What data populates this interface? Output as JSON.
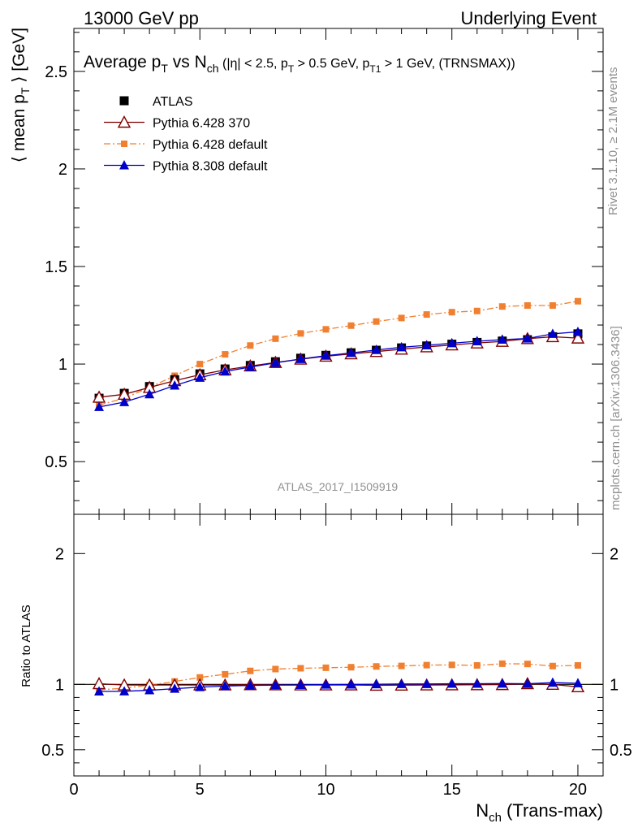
{
  "header": {
    "left": "13000 GeV pp",
    "right": "Underlying Event"
  },
  "side_labels": {
    "rivet": "Rivet 3.1.10, ≥ 2.1M events",
    "mcplots": "mcplots.cern.ch [arXiv:1306.3436]"
  },
  "watermark": "ATLAS_2017_I1509919",
  "chart_data": [
    {
      "type": "scatter",
      "title": "Average p_T vs N_ch (|η| < 2.5, p_T > 0.5 GeV, p_T1 > 1 GeV, (TRNSMAX))",
      "title_parts": {
        "a": "Average p",
        "a_sub": "T",
        "b": " vs N",
        "b_sub": "ch",
        "c": " (|η| < 2.5, p",
        "c_sub": "T",
        "d": " > 0.5 GeV, p",
        "d_sub": "T1",
        "e": " > 1 GeV, (TRNSMAX))"
      },
      "ylabel": "⟨ mean p_T ⟩ [GeV]",
      "ylabel_parts": {
        "a": "⟨ mean p",
        "sub": "T",
        "b": " ⟩ [GeV]"
      },
      "xlim": [
        0,
        21
      ],
      "ylim": [
        0.23,
        2.72
      ],
      "yticks": [
        0.5,
        1,
        1.5,
        2,
        2.5
      ],
      "ytick_labels": [
        "0.5",
        "1",
        "1.5",
        "2",
        "2.5"
      ],
      "legend_position": "top-left",
      "x": [
        1,
        2,
        3,
        4,
        5,
        6,
        7,
        8,
        9,
        10,
        11,
        12,
        13,
        14,
        15,
        16,
        17,
        18,
        19,
        20
      ],
      "series": [
        {
          "name": "ATLAS",
          "color": "#000000",
          "marker": "square",
          "values": [
            0.825,
            0.85,
            0.885,
            0.92,
            0.95,
            0.975,
            0.993,
            1.012,
            1.03,
            1.045,
            1.058,
            1.071,
            1.083,
            1.093,
            1.102,
            1.111,
            1.118,
            1.125,
            1.14,
            1.155
          ]
        },
        {
          "name": "Pythia 6.428 370",
          "color": "#800000",
          "marker": "open-triangle",
          "values": [
            0.83,
            0.845,
            0.88,
            0.915,
            0.945,
            0.97,
            0.99,
            1.008,
            1.025,
            1.04,
            1.052,
            1.064,
            1.076,
            1.088,
            1.098,
            1.108,
            1.116,
            1.13,
            1.14,
            1.133
          ]
        },
        {
          "name": "Pythia 6.428 default",
          "color": "#f08030",
          "marker": "small-square",
          "dash": "dashdot",
          "values": [
            0.79,
            0.825,
            0.88,
            0.94,
            1.0,
            1.05,
            1.095,
            1.13,
            1.157,
            1.178,
            1.197,
            1.218,
            1.236,
            1.254,
            1.266,
            1.272,
            1.295,
            1.3,
            1.3,
            1.322
          ]
        },
        {
          "name": "Pythia 8.308 default",
          "color": "#0000cc",
          "marker": "triangle",
          "values": [
            0.78,
            0.805,
            0.845,
            0.89,
            0.93,
            0.962,
            0.985,
            1.006,
            1.026,
            1.043,
            1.057,
            1.072,
            1.086,
            1.096,
            1.107,
            1.117,
            1.125,
            1.131,
            1.155,
            1.165
          ]
        }
      ]
    },
    {
      "type": "scatter",
      "ylabel": "Ratio to ATLAS",
      "xlabel": "N_ch (Trans-max)",
      "xlabel_parts": {
        "a": "N",
        "sub": "ch",
        "b": " (Trans-max)"
      },
      "xlim": [
        0,
        21
      ],
      "ylim": [
        0.3,
        2.3
      ],
      "xticks": [
        0,
        5,
        10,
        15,
        20
      ],
      "xtick_labels": [
        "0",
        "5",
        "10",
        "15",
        "20"
      ],
      "yticks": [
        0.5,
        1,
        2
      ],
      "ytick_labels": [
        "0.5",
        "1",
        "2"
      ],
      "x": [
        1,
        2,
        3,
        4,
        5,
        6,
        7,
        8,
        9,
        10,
        11,
        12,
        13,
        14,
        15,
        16,
        17,
        18,
        19,
        20
      ],
      "series": [
        {
          "name": "Pythia 6.428 370",
          "color": "#800000",
          "marker": "open-triangle",
          "values": [
            1.005,
            0.995,
            0.995,
            0.995,
            0.995,
            0.995,
            0.997,
            0.996,
            0.995,
            0.995,
            0.995,
            0.993,
            0.994,
            0.995,
            0.996,
            0.997,
            0.998,
            1.005,
            1.0,
            0.981
          ]
        },
        {
          "name": "Pythia 6.428 default",
          "color": "#f08030",
          "marker": "small-square",
          "dash": "dashdot",
          "values": [
            0.958,
            0.971,
            0.994,
            1.022,
            1.053,
            1.077,
            1.103,
            1.117,
            1.123,
            1.127,
            1.131,
            1.137,
            1.141,
            1.147,
            1.149,
            1.145,
            1.158,
            1.156,
            1.14,
            1.145
          ]
        },
        {
          "name": "Pythia 8.308 default",
          "color": "#0000cc",
          "marker": "triangle",
          "values": [
            0.946,
            0.947,
            0.955,
            0.967,
            0.979,
            0.987,
            0.992,
            0.994,
            0.996,
            0.998,
            0.999,
            1.001,
            1.003,
            1.003,
            1.005,
            1.005,
            1.006,
            1.005,
            1.013,
            1.009
          ]
        }
      ]
    }
  ]
}
